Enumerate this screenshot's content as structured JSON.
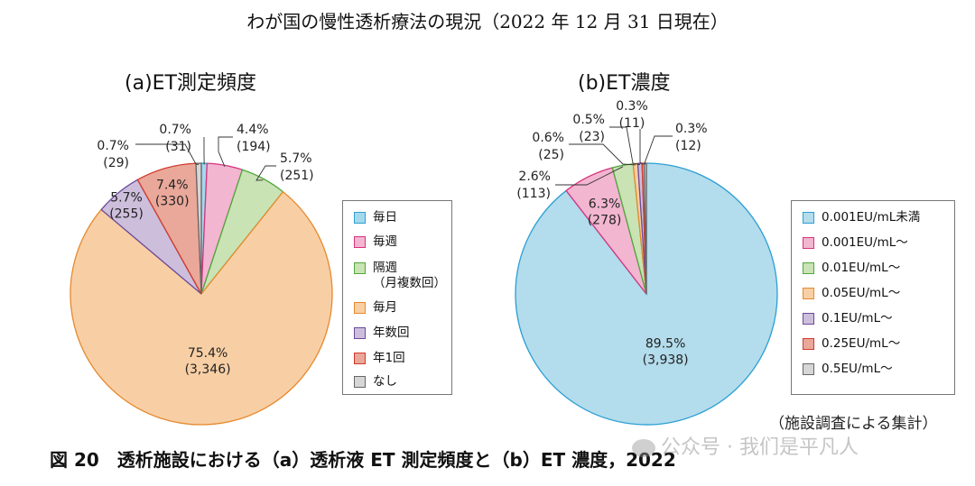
{
  "title": "わが国の慢性透析療法の現況（2022 年 12 月 31 日現在）",
  "source_note": "（施設調査による集計）",
  "caption": "図 20　透析施設における（a）透析液 ET 測定頻度と（b）ET 濃度，2022",
  "watermark": "公众号 · 我们是平凡人",
  "colors": {
    "daily": "#a6d8ec",
    "weekly": "#f2b6d0",
    "biweekly": "#c9e3b5",
    "monthly": "#f8cfa5",
    "yearly_multi": "#cdbfdc",
    "yearly_once": "#e9a89a",
    "none": "#d6d6d6",
    "c0": "#b3dcec",
    "c1": "#f2b6d0",
    "c2": "#c9e3b5",
    "c3": "#f8cfa5",
    "c4": "#cdbfdc",
    "c5": "#e9a89a",
    "c6": "#d6d6d6"
  },
  "chart_data": [
    {
      "type": "pie",
      "title": "(a)ET測定頻度",
      "categories": [
        "毎日",
        "毎週",
        "隔週\n（月複数回）",
        "毎月",
        "年数回",
        "年1回",
        "なし"
      ],
      "percent_labels": [
        "0.7%",
        "4.4%",
        "5.7%",
        "75.4%",
        "5.7%",
        "7.4%",
        "0.7%"
      ],
      "count_labels": [
        "(31)",
        "(194)",
        "(251)",
        "(3,346)",
        "(255)",
        "(330)",
        "(29)"
      ],
      "values": [
        31,
        194,
        251,
        3346,
        255,
        330,
        29
      ],
      "legend_position": "right"
    },
    {
      "type": "pie",
      "title": "(b)ET濃度",
      "categories": [
        "0.001EU/mL未満",
        "0.001EU/mL〜",
        "0.01EU/mL〜",
        "0.05EU/mL〜",
        "0.1EU/mL〜",
        "0.25EU/mL〜",
        "0.5EU/mL〜"
      ],
      "percent_labels": [
        "89.5%",
        "6.3%",
        "2.6%",
        "0.6%",
        "0.5%",
        "0.3%",
        "0.3%"
      ],
      "count_labels": [
        "(3,938)",
        "(278)",
        "(113)",
        "(25)",
        "(23)",
        "(11)",
        "(12)"
      ],
      "values": [
        3938,
        278,
        113,
        25,
        23,
        11,
        12
      ],
      "legend_position": "right"
    }
  ]
}
